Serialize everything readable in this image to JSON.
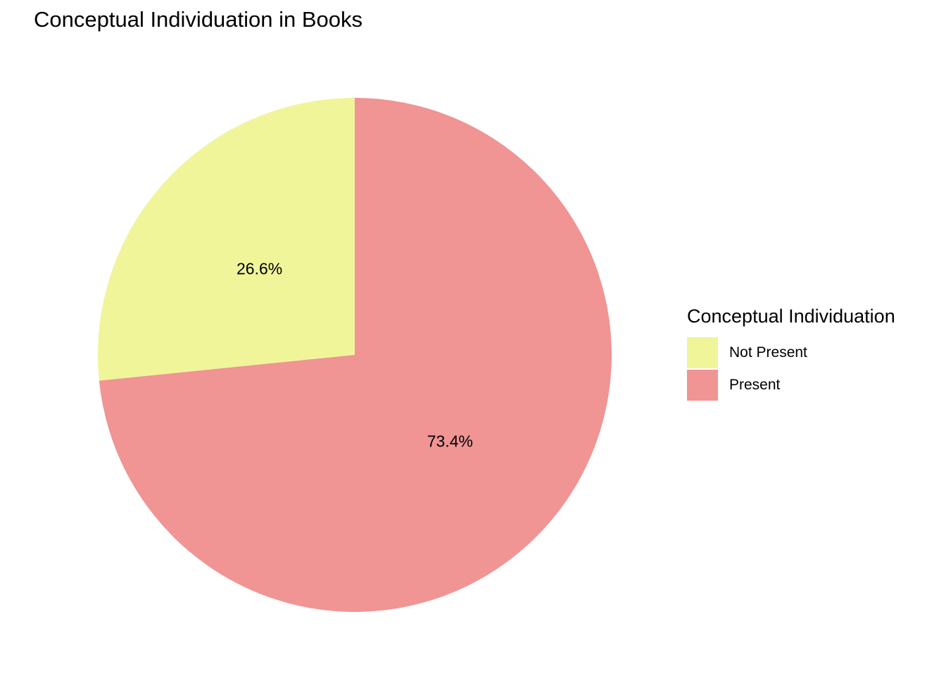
{
  "chart_data": {
    "type": "pie",
    "title": "Conceptual Individuation in Books",
    "legend": {
      "title": "Conceptual Individuation",
      "placement": "right"
    },
    "slices": [
      {
        "name": "Not Present",
        "value": 26.6,
        "label": "26.6%",
        "color": "#F0F59A"
      },
      {
        "name": "Present",
        "value": 73.4,
        "label": "73.4%",
        "color": "#F09494"
      }
    ],
    "start_angle_deg": 0,
    "direction": "counterclockwise"
  }
}
